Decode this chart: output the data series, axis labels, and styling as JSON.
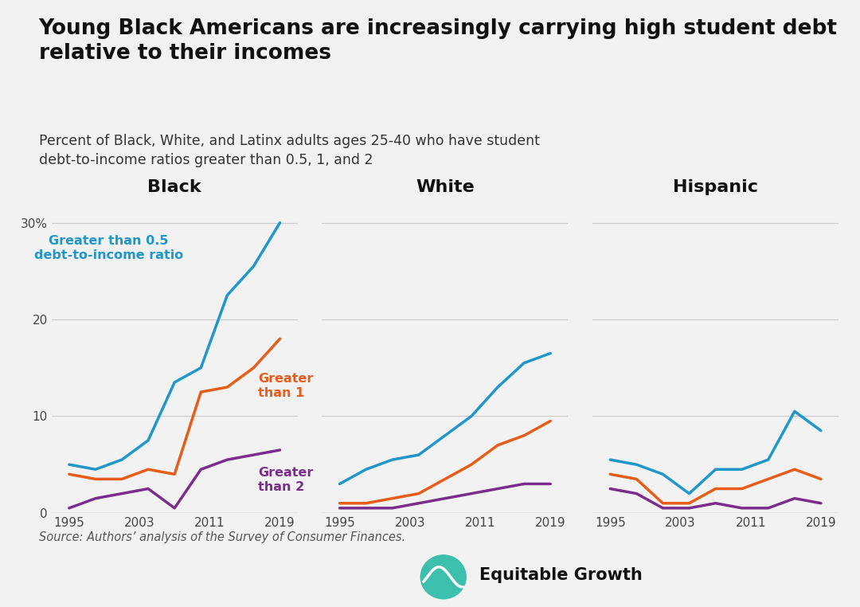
{
  "title": "Young Black Americans are increasingly carrying high student debt\nrelative to their incomes",
  "subtitle": "Percent of Black, White, and Latinx adults ages 25-40 who have student\ndebt-to-income ratios greater than 0.5, 1, and 2",
  "source": "Source: Authors’ analysis of the Survey of Consumer Finances.",
  "logo_text": "Equitable Growth",
  "panels": [
    "Black",
    "White",
    "Hispanic"
  ],
  "years": [
    1995,
    1998,
    2001,
    2004,
    2007,
    2010,
    2013,
    2016,
    2019
  ],
  "black_gt05": [
    5.0,
    4.5,
    5.5,
    7.5,
    13.5,
    15.0,
    22.5,
    25.5,
    30.0
  ],
  "black_gt1": [
    4.0,
    3.5,
    3.5,
    4.5,
    4.0,
    12.5,
    13.0,
    15.0,
    18.0
  ],
  "black_gt2": [
    0.5,
    1.5,
    2.0,
    2.5,
    0.5,
    4.5,
    5.5,
    6.0,
    6.5
  ],
  "white_gt05": [
    3.0,
    4.5,
    5.5,
    6.0,
    8.0,
    10.0,
    13.0,
    15.5,
    16.5
  ],
  "white_gt1": [
    1.0,
    1.0,
    1.5,
    2.0,
    3.5,
    5.0,
    7.0,
    8.0,
    9.5
  ],
  "white_gt2": [
    0.5,
    0.5,
    0.5,
    1.0,
    1.5,
    2.0,
    2.5,
    3.0,
    3.0
  ],
  "hisp_gt05": [
    5.5,
    5.0,
    4.0,
    2.0,
    4.5,
    4.5,
    5.5,
    10.5,
    8.5
  ],
  "hisp_gt1": [
    4.0,
    3.5,
    1.0,
    1.0,
    2.5,
    2.5,
    3.5,
    4.5,
    3.5
  ],
  "hisp_gt2": [
    2.5,
    2.0,
    0.5,
    0.5,
    1.0,
    0.5,
    0.5,
    1.5,
    1.0
  ],
  "color_gt05": "#2196c9",
  "color_gt1": "#e85c1a",
  "color_gt2": "#7b2d8b",
  "background_color": "#f2f2f2",
  "ylim": [
    0,
    32
  ],
  "yticks": [
    0,
    10,
    20,
    30
  ],
  "xticks": [
    1995,
    2003,
    2011,
    2019
  ],
  "line_width": 2.5,
  "annot_gt05": "Greater than 0.5\ndebt-to-income ratio",
  "annot_gt1": "Greater\nthan 1",
  "annot_gt2": "Greater\nthan 2"
}
